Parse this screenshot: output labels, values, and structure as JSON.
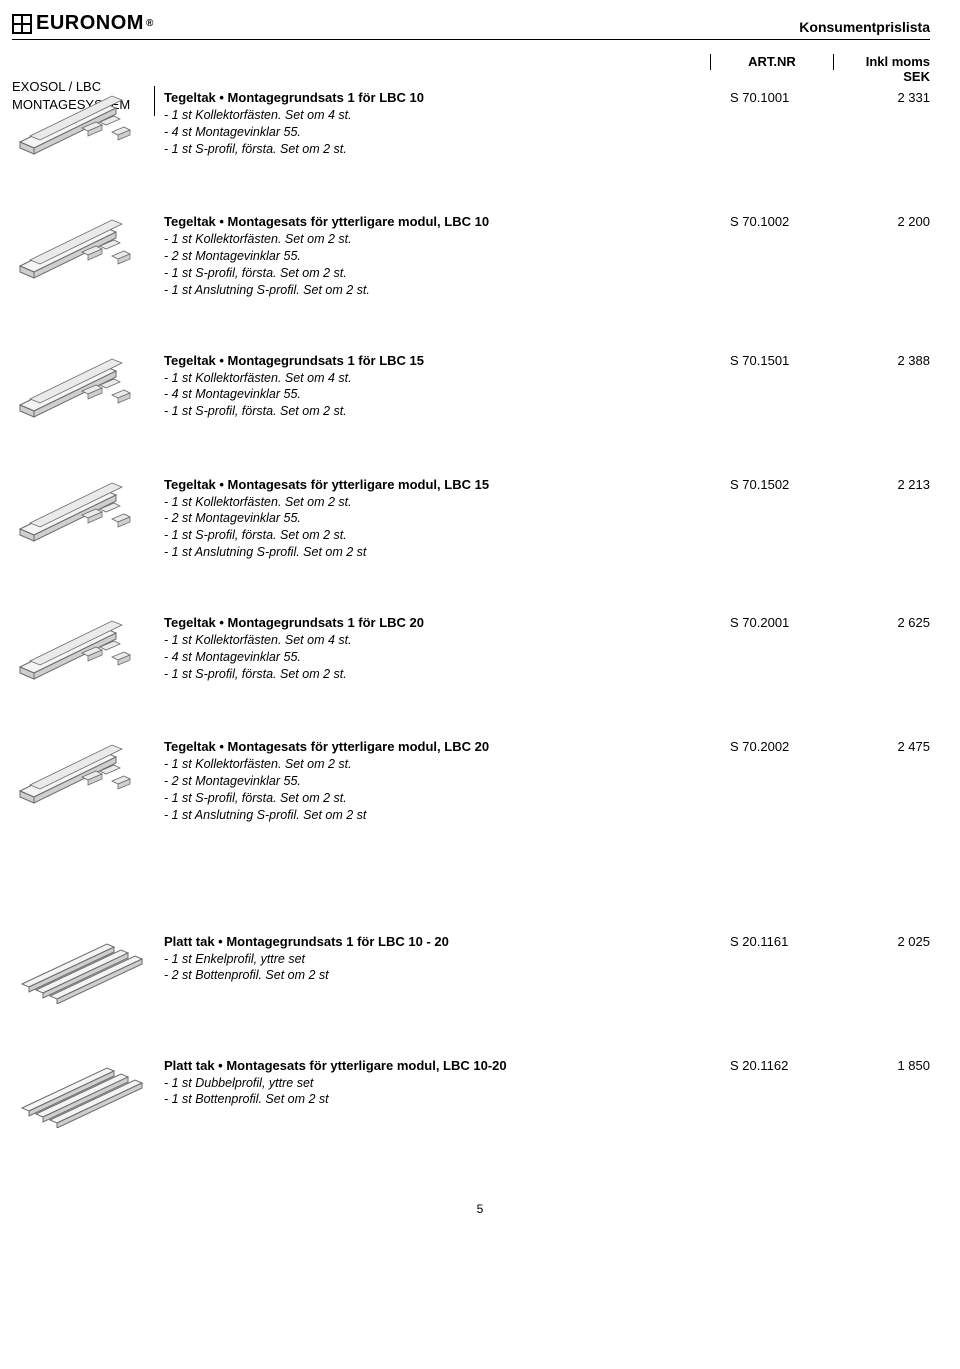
{
  "header": {
    "brand": "EURONOM",
    "doc_type": "Konsumentprislista"
  },
  "columns": {
    "art": "ART.NR",
    "price_l1": "Inkl moms",
    "price_l2": "SEK"
  },
  "category": {
    "l1": "EXOSOL / LBC",
    "l2": "MONTAGESYSTEM"
  },
  "thumb_colors": {
    "stroke": "#6b6b6b",
    "fill_light": "#eaeaea",
    "fill_rail": "#f4f4f4",
    "fill_dark": "#cfcfcf"
  },
  "items": [
    {
      "title": "Tegeltak • Montagegrundsats 1 för LBC 10",
      "lines": [
        "- 1 st Kollektorfästen. Set om 4 st.",
        "- 4 st Montagevinklar 55.",
        "- 1 st S-profil, första. Set om 2 st."
      ],
      "art": "S 70.1001",
      "price": "2 331",
      "thumb": "rail_brackets"
    },
    {
      "title": "Tegeltak • Montagesats för ytterligare modul, LBC 10",
      "lines": [
        "- 1 st Kollektorfästen. Set om 2 st.",
        "- 2 st Montagevinklar 55.",
        "- 1 st S-profil, första. Set om 2 st.",
        "- 1 st Anslutning S-profil. Set om 2 st."
      ],
      "art": "S 70.1002",
      "price": "2 200",
      "thumb": "rail_brackets"
    },
    {
      "title": "Tegeltak • Montagegrundsats 1 för LBC 15",
      "lines": [
        "- 1 st Kollektorfästen. Set om 4 st.",
        "- 4 st Montagevinklar 55.",
        "- 1 st S-profil, första. Set om 2 st."
      ],
      "art": "S 70.1501",
      "price": "2 388",
      "thumb": "rail_brackets"
    },
    {
      "title": "Tegeltak • Montagesats för ytterligare modul, LBC 15",
      "lines": [
        "- 1 st Kollektorfästen. Set om 2 st.",
        "- 2 st Montagevinklar 55.",
        "- 1 st S-profil, första. Set om 2 st.",
        "- 1 st Anslutning S-profil. Set om 2 st"
      ],
      "art": "S 70.1502",
      "price": "2 213",
      "thumb": "rail_brackets"
    },
    {
      "title": "Tegeltak • Montagegrundsats 1 för LBC 20",
      "lines": [
        "- 1 st Kollektorfästen. Set om 4 st.",
        "- 4 st Montagevinklar 55.",
        "- 1 st S-profil, första. Set om 2 st."
      ],
      "art": "S 70.2001",
      "price": "2 625",
      "thumb": "rail_brackets"
    },
    {
      "title": "Tegeltak • Montagesats för ytterligare modul, LBC 20",
      "lines": [
        "- 1 st Kollektorfästen. Set om 2 st.",
        "- 2 st Montagevinklar 55.",
        "- 1 st S-profil, första. Set om 2 st.",
        "- 1 st Anslutning S-profil. Set om 2 st"
      ],
      "art": "S 70.2002",
      "price": "2 475",
      "thumb": "rail_brackets"
    },
    {
      "title": "Platt tak • Montagegrundsats 1 för LBC 10 - 20",
      "lines": [
        "- 1 st Enkelprofil, yttre set",
        "- 2 st Bottenprofil. Set om 2 st"
      ],
      "art": "S 20.1161",
      "price": "2 025",
      "thumb": "flat_triple",
      "gap_before": true
    },
    {
      "title": "Platt tak • Montagesats för ytterligare modul, LBC 10-20",
      "lines": [
        "- 1 st Dubbelprofil, yttre set",
        "- 1 st Bottenprofil. Set om 2 st"
      ],
      "art": "S 20.1162",
      "price": "1 850",
      "thumb": "flat_triple"
    }
  ],
  "page_number": "5"
}
